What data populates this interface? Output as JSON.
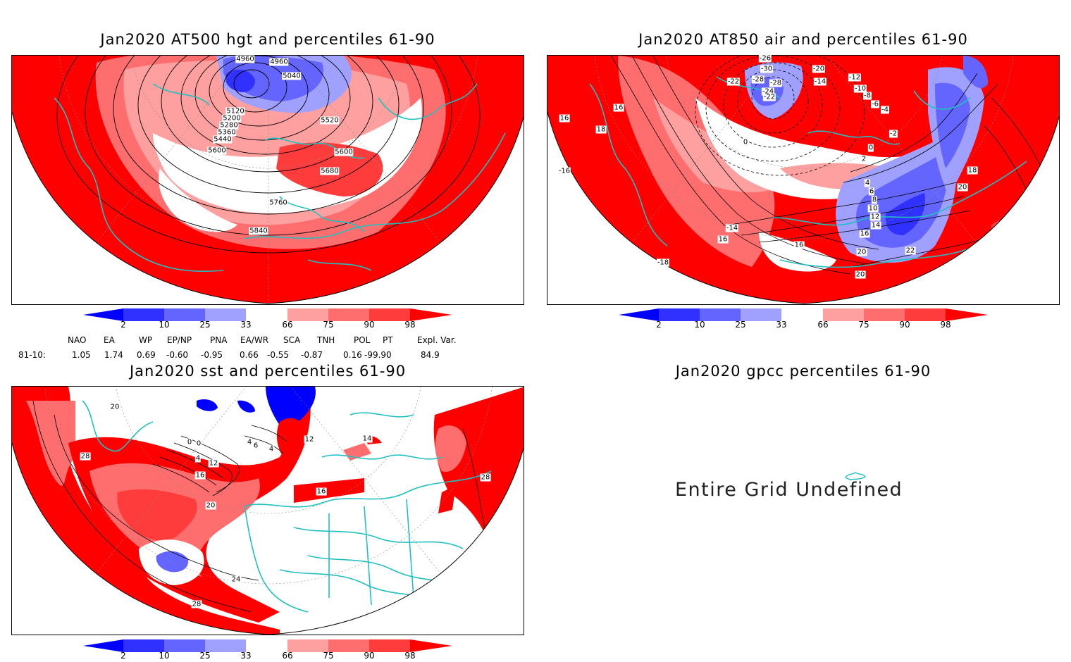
{
  "colors": {
    "frame": "#000000",
    "coast": "#20c0c0",
    "red_strong": "#ff0000",
    "red_mid": "#ff3c3c",
    "red_light": "#ff6e6e",
    "pink": "#ffa0a0",
    "blue_light": "#a0a0ff",
    "blue_mid": "#6464ff",
    "blue_strong": "#3030ff",
    "blue_deep": "#0000ff"
  },
  "colorbar": {
    "labels": [
      "2",
      "10",
      "25",
      "33",
      "66",
      "75",
      "90",
      "98"
    ]
  },
  "panels": {
    "hgt500": {
      "title": "Jan2020 AT500 hgt and percentiles 61-90",
      "contour_labels": [
        "4960",
        "4960",
        "5040",
        "5120",
        "5200",
        "5280",
        "5360",
        "5440",
        "5520",
        "5600",
        "5600",
        "5680",
        "5760",
        "5840"
      ]
    },
    "air850": {
      "title": "Jan2020 AT850 air and percentiles 61-90",
      "contour_labels": [
        "-26",
        "-30",
        "-28",
        "-22",
        "-24",
        "-28",
        "-22",
        "-20",
        "-14",
        "-12",
        "-10",
        "-8",
        "-6",
        "-4",
        "-2",
        "0",
        "2",
        "0",
        "4",
        "6",
        "8",
        "10",
        "12",
        "14",
        "16",
        "16",
        "16",
        "16",
        "16",
        "18",
        "18",
        "20",
        "20",
        "22",
        "20",
        "-14",
        "-16",
        "-18"
      ]
    },
    "sst": {
      "title": "Jan2020 sst and percentiles 61-90",
      "contour_labels": [
        "20",
        "28",
        "0",
        "0",
        "4",
        "4",
        "6",
        "4",
        "12",
        "16",
        "20",
        "24",
        "28",
        "28",
        "12",
        "16",
        "14"
      ]
    },
    "gpcc": {
      "title": "Jan2020 gpcc percentiles 61-90",
      "message": "Entire Grid Undefined"
    }
  },
  "indices": {
    "headers": [
      "NAO",
      "EA",
      "WP",
      "EP/NP",
      "PNA",
      "EA/WR",
      "SCA",
      "TNH",
      "POL",
      "PT",
      "Expl. Var."
    ],
    "row_label": "81-10:",
    "values": [
      "1.05",
      "1.74",
      "0.69",
      "-0.60",
      "-0.95",
      "0.66",
      "-0.55",
      "-0.87",
      "0.16",
      "-99.90",
      "84.9"
    ]
  }
}
